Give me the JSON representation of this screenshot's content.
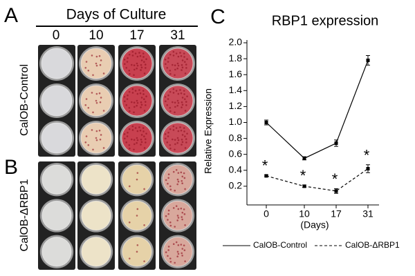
{
  "figure": {
    "panels": [
      "A",
      "B",
      "C"
    ],
    "header": "Days of Culture",
    "days": [
      "0",
      "10",
      "17",
      "31"
    ],
    "rows": [
      "CalOB-Control",
      "CalOB-ΔRBP1"
    ]
  },
  "chart_data": {
    "type": "line",
    "title": "RBP1 expression",
    "x_label": "(Days)",
    "y_label": "Relative Expression",
    "categories": [
      "0",
      "10",
      "17",
      "31"
    ],
    "series": [
      {
        "name": "CalOB-Control",
        "color": "#000000",
        "dash": "solid",
        "values": [
          1.0,
          0.55,
          0.74,
          1.78
        ],
        "errors": [
          0.03,
          0.02,
          0.04,
          0.06
        ]
      },
      {
        "name": "CalOB-ΔRBP1",
        "color": "#000000",
        "dash": "dashed",
        "values": [
          0.33,
          0.2,
          0.14,
          0.42
        ],
        "errors": [
          0.01,
          0.015,
          0.03,
          0.05
        ],
        "annotations": [
          "*",
          "*",
          "*",
          "*"
        ]
      }
    ],
    "ylim": [
      0,
      2
    ],
    "yticks": [
      0.2,
      0.4,
      0.6,
      0.8,
      {
        "value": 1,
        "label": "1.0"
      },
      1.2,
      1.4,
      1.6,
      1.8,
      {
        "value": 2,
        "label": "2.0"
      }
    ],
    "legend": "bottom",
    "grid": false
  }
}
